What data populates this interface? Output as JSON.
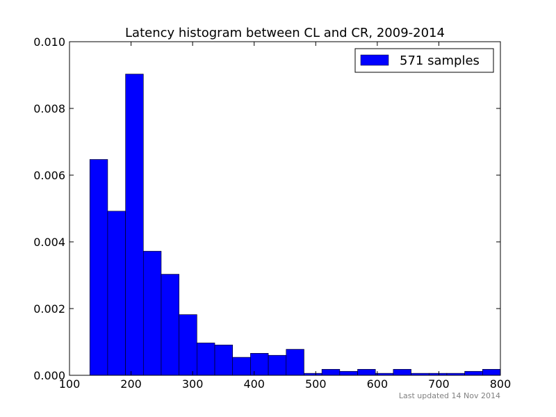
{
  "chart_data": {
    "type": "bar",
    "title": "Latency histogram between CL and CR, 2009-2014",
    "xlabel": "",
    "ylabel": "",
    "xlim": [
      100,
      800
    ],
    "ylim": [
      0,
      0.01
    ],
    "x_ticks": [
      100,
      200,
      300,
      400,
      500,
      600,
      700,
      800
    ],
    "y_ticks": [
      0.0,
      0.002,
      0.004,
      0.006,
      0.008,
      0.01
    ],
    "x_tick_labels": [
      "100",
      "200",
      "300",
      "400",
      "500",
      "600",
      "700",
      "800"
    ],
    "y_tick_labels": [
      "0.000",
      "0.002",
      "0.004",
      "0.006",
      "0.008",
      "0.010"
    ],
    "grid": false,
    "legend_position": "top-right",
    "bar_color": "#0000ff",
    "bins": [
      {
        "x0": 133,
        "x1": 162,
        "value": 0.00647
      },
      {
        "x0": 162,
        "x1": 191,
        "value": 0.00492
      },
      {
        "x0": 191,
        "x1": 220,
        "value": 0.00903
      },
      {
        "x0": 220,
        "x1": 249,
        "value": 0.00372
      },
      {
        "x0": 249,
        "x1": 278,
        "value": 0.00303
      },
      {
        "x0": 278,
        "x1": 307,
        "value": 0.00182
      },
      {
        "x0": 307,
        "x1": 336,
        "value": 0.00097
      },
      {
        "x0": 336,
        "x1": 365,
        "value": 0.00091
      },
      {
        "x0": 365,
        "x1": 394,
        "value": 0.00054
      },
      {
        "x0": 394,
        "x1": 423,
        "value": 0.00066
      },
      {
        "x0": 423,
        "x1": 452,
        "value": 0.0006
      },
      {
        "x0": 452,
        "x1": 481,
        "value": 0.00078
      },
      {
        "x0": 481,
        "x1": 510,
        "value": 6e-05
      },
      {
        "x0": 510,
        "x1": 539,
        "value": 0.00018
      },
      {
        "x0": 539,
        "x1": 568,
        "value": 0.00012
      },
      {
        "x0": 568,
        "x1": 597,
        "value": 0.00018
      },
      {
        "x0": 597,
        "x1": 626,
        "value": 6e-05
      },
      {
        "x0": 626,
        "x1": 655,
        "value": 0.00018
      },
      {
        "x0": 655,
        "x1": 684,
        "value": 6e-05
      },
      {
        "x0": 684,
        "x1": 713,
        "value": 6e-05
      },
      {
        "x0": 713,
        "x1": 742,
        "value": 6e-05
      },
      {
        "x0": 742,
        "x1": 771,
        "value": 0.00012
      },
      {
        "x0": 771,
        "x1": 800,
        "value": 0.00018
      }
    ],
    "series": [
      {
        "name": "571 samples"
      }
    ]
  },
  "footnote": "Last updated 14 Nov 2014"
}
